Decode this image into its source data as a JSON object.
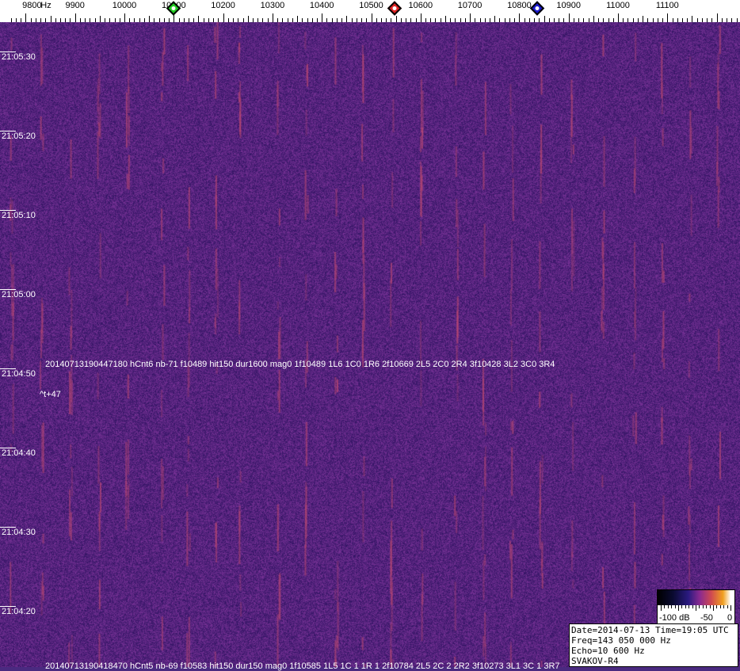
{
  "chart_data": {
    "type": "heatmap",
    "x_axis": {
      "unit": "Hz",
      "tick_labels": [
        "9800",
        "9900",
        "10000",
        "10100",
        "10200",
        "10300",
        "10400",
        "10500",
        "10600",
        "10700",
        "10800",
        "10900",
        "11000",
        "11100"
      ],
      "range_hz": [
        9770,
        11250
      ]
    },
    "y_axis": {
      "tick_labels": [
        "21:05:30",
        "21:05:20",
        "21:05:10",
        "21:05:00",
        "21:04:50",
        "21:04:40",
        "21:04:30",
        "21:04:20"
      ]
    },
    "markers": [
      {
        "freq_hz": 10100,
        "color": "#22cc22"
      },
      {
        "freq_hz": 10547,
        "color": "#dd2222"
      },
      {
        "freq_hz": 10837,
        "color": "#1a1acc"
      }
    ],
    "colorbar": {
      "labels": [
        "-100 dB",
        "-50",
        "0"
      ],
      "range_db": [
        -100,
        0
      ]
    },
    "annotations": [
      "20140713190447180 hCnt6 nb-71 f10489 hit150 dur1600 mag0 1f10489 1L6 1C0 1R6 2f10669 2L5 2C0 2R4 3f10428 3L2 3C0 3R4",
      "^t+47",
      "20140713190418470 hCnt5 nb-69 f10583 hit150 dur150 mag0 1f10585 1L5 1C 1 1R 1 2f10784 2L5 2C 2 2R2 3f10273 3L1 3C 1 3R7"
    ]
  },
  "info": {
    "line1": "Date=2014-07-13 Time=19:05 UTC",
    "line2": "Freq=143 050 000 Hz",
    "line3": "Echo=10 600 Hz",
    "line4": "SVAKOV-R4"
  },
  "colors": {
    "background": "#4a2a80",
    "streak": "#c04a70"
  }
}
